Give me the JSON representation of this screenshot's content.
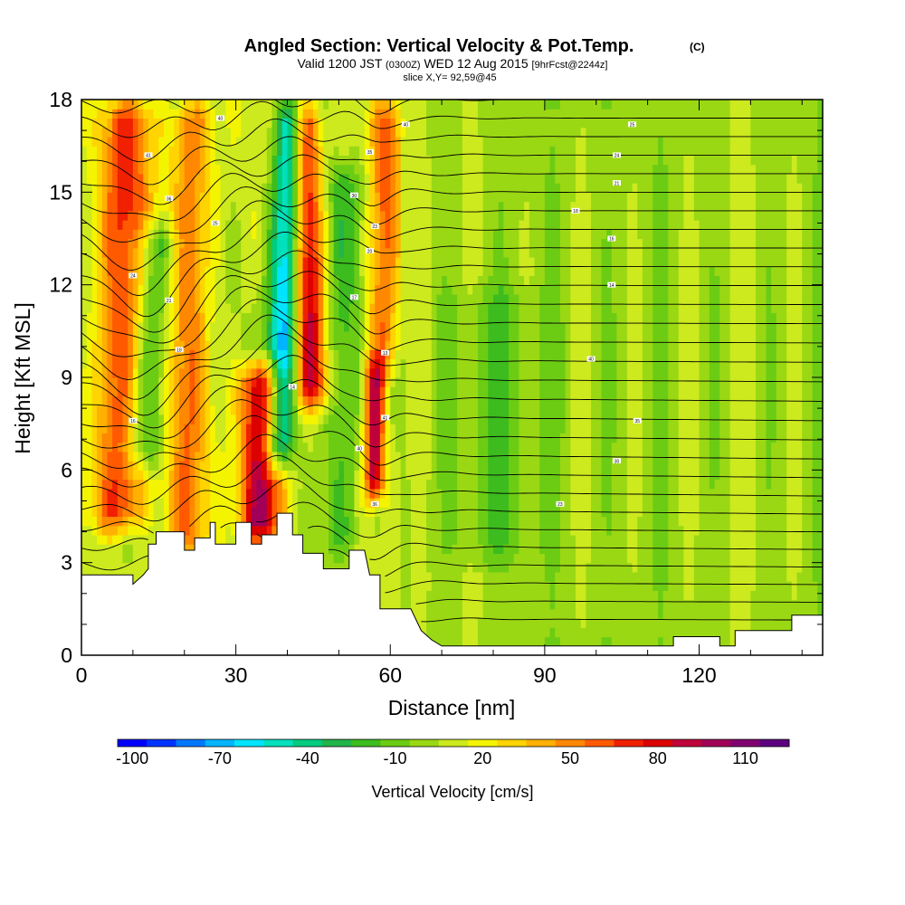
{
  "title": {
    "main": "Angled Section: Vertical Velocity & Pot.Temp.",
    "unit": "(C)",
    "valid_a": "Valid 1200 JST",
    "valid_b": "(0300Z)",
    "valid_c": "WED 12 Aug 2015",
    "valid_d": "[9hrFcst@2244z]",
    "slice": "slice X,Y= 92,59@45"
  },
  "chart_data": {
    "type": "heatmap",
    "title": "Angled Section: Vertical Velocity & Pot.Temp.",
    "xlabel": "Distance [nm]",
    "ylabel": "Height [Kft MSL]",
    "xlim": [
      0,
      144
    ],
    "ylim": [
      0,
      18
    ],
    "x_ticks": [
      "0",
      "30",
      "60",
      "90",
      "120"
    ],
    "y_ticks": [
      "0",
      "3",
      "6",
      "9",
      "12",
      "15",
      "18"
    ],
    "x_tick_values": [
      0,
      30,
      60,
      90,
      120
    ],
    "y_tick_values": [
      0,
      3,
      6,
      9,
      12,
      15,
      18
    ],
    "colorbar": {
      "label": "Vertical Velocity [cm/s]",
      "tick_labels": [
        "-100",
        "-70",
        "-40",
        "-10",
        "20",
        "50",
        "80",
        "110"
      ],
      "tick_values": [
        -100,
        -70,
        -40,
        -10,
        20,
        50,
        80,
        110
      ],
      "min": -105,
      "max": 125,
      "step": 10,
      "colors": [
        "#0000ff",
        "#0033ff",
        "#0077ff",
        "#00b4ff",
        "#00e4ff",
        "#00e0bb",
        "#00cc80",
        "#22b54a",
        "#3cbc1e",
        "#6ccc14",
        "#9ad814",
        "#ccea1e",
        "#f4f400",
        "#ffd400",
        "#ffb000",
        "#ff8800",
        "#ff5a00",
        "#f02000",
        "#dc0000",
        "#c0003a",
        "#a00058",
        "#800072",
        "#5c0080"
      ]
    },
    "terrain_profile": [
      [
        0,
        2.6
      ],
      [
        10,
        2.6
      ],
      [
        10,
        2.3
      ],
      [
        12,
        2.6
      ],
      [
        13,
        2.8
      ],
      [
        13,
        3.6
      ],
      [
        14.5,
        3.6
      ],
      [
        14.5,
        4.0
      ],
      [
        20,
        4.0
      ],
      [
        20,
        3.4
      ],
      [
        22,
        3.4
      ],
      [
        22,
        3.8
      ],
      [
        25,
        3.8
      ],
      [
        25,
        4.3
      ],
      [
        26,
        4.3
      ],
      [
        26,
        3.6
      ],
      [
        30,
        3.6
      ],
      [
        30,
        4.3
      ],
      [
        33,
        4.3
      ],
      [
        33,
        3.6
      ],
      [
        35,
        3.6
      ],
      [
        35,
        3.9
      ],
      [
        38,
        3.9
      ],
      [
        38,
        4.6
      ],
      [
        41,
        4.6
      ],
      [
        41,
        3.9
      ],
      [
        43,
        3.9
      ],
      [
        43,
        3.3
      ],
      [
        47,
        3.3
      ],
      [
        47,
        2.8
      ],
      [
        52,
        2.8
      ],
      [
        52,
        3.4
      ],
      [
        55,
        3.4
      ],
      [
        56,
        2.6
      ],
      [
        58,
        2.6
      ],
      [
        58,
        1.5
      ],
      [
        60,
        1.5
      ],
      [
        60,
        1.5
      ],
      [
        64,
        1.5
      ],
      [
        66,
        0.8
      ],
      [
        68,
        0.5
      ],
      [
        70,
        0.3
      ],
      [
        115,
        0.3
      ],
      [
        115,
        0.6
      ],
      [
        124,
        0.6
      ],
      [
        124,
        0.3
      ],
      [
        127,
        0.3
      ],
      [
        127,
        0.8
      ],
      [
        138,
        0.8
      ],
      [
        138,
        1.3
      ],
      [
        144,
        1.3
      ]
    ],
    "vertical_velocity_features": [
      {
        "x": 7,
        "z_bottom": 4.0,
        "z_top": 18,
        "tilt": 0.15,
        "width": 5,
        "value": 60
      },
      {
        "x": 20,
        "z_bottom": 3.0,
        "z_top": 18,
        "tilt": 0.1,
        "width": 4,
        "value": 45
      },
      {
        "x": 35,
        "z_bottom": 3.6,
        "z_top": 9.5,
        "tilt": 0.0,
        "width": 4,
        "value": 95
      },
      {
        "x": 38,
        "z_bottom": 6.0,
        "z_top": 18,
        "tilt": 0.25,
        "width": 3,
        "value": -80
      },
      {
        "x": 45,
        "z_bottom": 8.0,
        "z_top": 18,
        "tilt": -0.2,
        "width": 3,
        "value": 80
      },
      {
        "x": 57,
        "z_bottom": 5.0,
        "z_top": 9.5,
        "tilt": 0.0,
        "width": 2,
        "value": 85
      },
      {
        "x": 58,
        "z_bottom": 9.0,
        "z_top": 18,
        "tilt": 0.15,
        "width": 3,
        "value": 50
      },
      {
        "x": 12,
        "z_bottom": 6.0,
        "z_top": 14,
        "tilt": 0.3,
        "width": 4,
        "value": -40
      },
      {
        "x": 50,
        "z_bottom": 3.0,
        "z_top": 16,
        "tilt": 0.1,
        "width": 4,
        "value": -25
      },
      {
        "x": 100,
        "z_bottom": 0.3,
        "z_top": 18,
        "tilt": 0.0,
        "width": 10,
        "value": 10
      },
      {
        "x": 80,
        "z_bottom": 3.0,
        "z_top": 12,
        "tilt": 0.0,
        "width": 8,
        "value": -15
      }
    ],
    "isentrope_labels": [
      "41",
      "40",
      "36",
      "25",
      "24",
      "21",
      "18",
      "16",
      "14",
      "40",
      "35",
      "30",
      "23",
      "20",
      "17",
      "13"
    ]
  }
}
